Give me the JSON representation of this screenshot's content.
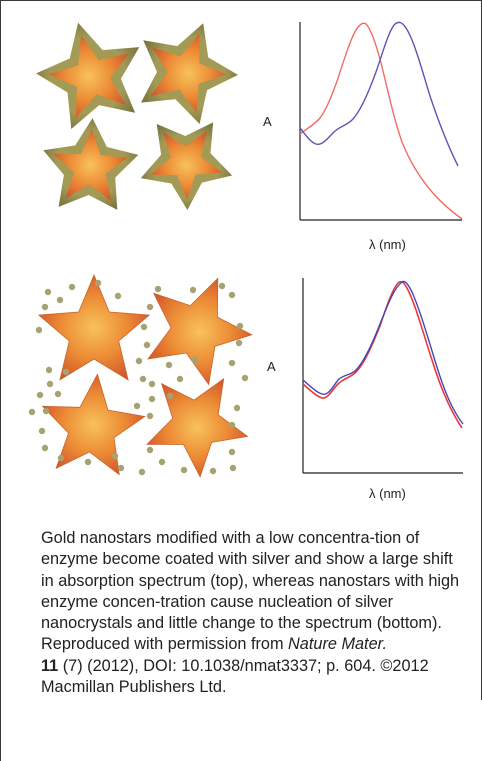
{
  "top_panel": {
    "ylabel": "A",
    "xlabel": "λ (nm)",
    "series": [
      {
        "color": "#f06a6a"
      },
      {
        "color": "#5b55b8"
      }
    ]
  },
  "bottom_panel": {
    "ylabel": "A",
    "xlabel": "λ (nm)",
    "series": [
      {
        "color": "#e83a3a"
      },
      {
        "color": "#4a44b5"
      }
    ]
  },
  "caption": {
    "text_1": "Gold nanostars modified with a low concentra-tion of enzyme become coated with silver and show a large shift in absorption spectrum (top), whereas nanostars with high enzyme concen-tration cause nucleation of silver nanocrystals and little change to the spectrum (bottom). Reproduced with permission from ",
    "journal": "Nature Mater.",
    "volume": "11",
    "text_2": " (7) (2012), DOI: 10.1038/nmat3337; p. 604. ©2012 Macmillan Publishers Ltd."
  },
  "colors": {
    "star_fill_center": "#f6b24a",
    "star_fill_edge": "#d7622a",
    "star_coat": "#8d8a4a",
    "dot": "#a7a272"
  }
}
